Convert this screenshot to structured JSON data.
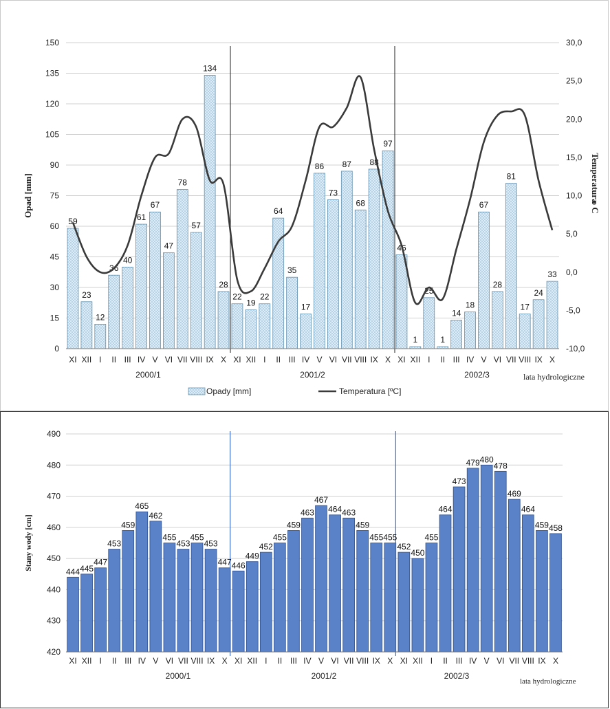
{
  "top_chart": {
    "ylabel_left": "Opad [mm]",
    "ylabel_right": "Temperatura",
    "ylabel_right_unit": "o C",
    "xaxis_caption": "lata hydrologiczne",
    "legend": {
      "bars": "Opady [mm]",
      "line": "Temperatura [ºC]"
    },
    "colors": {
      "bar_fill": "#a9cde4",
      "bar_stroke": "#5e8fb0",
      "line": "#3a3a3a",
      "grid": "#d0d0d0"
    }
  },
  "bottom_chart": {
    "ylabel": "Stany wody [cm]",
    "xaxis_caption": "lata hydrologiczne",
    "colors": {
      "bar_fill": "#5a82c8",
      "bar_stroke": "#2d4f8f",
      "divider": "#3f6fc0",
      "grid": "#d0d0d0"
    }
  },
  "chart_data": [
    {
      "type": "bar",
      "categories": [
        "XI",
        "XII",
        "I",
        "II",
        "III",
        "IV",
        "V",
        "VI",
        "VII",
        "VIII",
        "IX",
        "X",
        "XI",
        "XII",
        "I",
        "II",
        "III",
        "IV",
        "V",
        "VI",
        "VII",
        "VIII",
        "IX",
        "X",
        "XI",
        "XII",
        "I",
        "II",
        "III",
        "IV",
        "V",
        "VI",
        "VII",
        "VIII",
        "IX",
        "X"
      ],
      "year_groups": [
        "2000/1",
        "2001/2",
        "2002/3"
      ],
      "series": [
        {
          "name": "Opady [mm]",
          "type": "bar",
          "axis": "left",
          "values": [
            59,
            23,
            12,
            36,
            40,
            61,
            67,
            47,
            78,
            57,
            134,
            28,
            22,
            19,
            22,
            64,
            35,
            17,
            86,
            73,
            87,
            68,
            88,
            97,
            46,
            1,
            25,
            1,
            14,
            18,
            67,
            28,
            81,
            17,
            24,
            33
          ]
        },
        {
          "name": "Temperatura [ºC]",
          "type": "line",
          "axis": "right",
          "values": [
            6.5,
            2.0,
            0.0,
            0.5,
            3.5,
            10.0,
            15.0,
            15.5,
            20.0,
            19.0,
            12.0,
            11.5,
            -1.0,
            -2.5,
            0.5,
            4.0,
            6.0,
            12.0,
            19.0,
            19.0,
            21.5,
            25.5,
            16.0,
            8.0,
            3.5,
            -4.0,
            -2.0,
            -3.5,
            3.0,
            9.5,
            17.0,
            20.5,
            21.0,
            20.5,
            12.0,
            5.5
          ]
        }
      ],
      "ylim_left": [
        0,
        150
      ],
      "yticks_left": [
        "0",
        "15",
        "30",
        "45",
        "60",
        "75",
        "90",
        "105",
        "120",
        "135",
        "150"
      ],
      "ylim_right": [
        -10,
        30
      ],
      "yticks_right": [
        "-10,0",
        "-5,0",
        "0,0",
        "5,0",
        "10,0",
        "15,0",
        "20,0",
        "25,0",
        "30,0"
      ],
      "ylabel": "Opad [mm]",
      "y2label": "Temperatura o C",
      "grid": true,
      "legend": "bottom"
    },
    {
      "type": "bar",
      "categories": [
        "XI",
        "XII",
        "I",
        "II",
        "III",
        "IV",
        "V",
        "VI",
        "VII",
        "VIII",
        "IX",
        "X",
        "XI",
        "XII",
        "I",
        "II",
        "III",
        "IV",
        "V",
        "VI",
        "VII",
        "VIII",
        "IX",
        "X",
        "XI",
        "XII",
        "I",
        "II",
        "III",
        "IV",
        "V",
        "VI",
        "VII",
        "VIII",
        "IX",
        "X"
      ],
      "year_groups": [
        "2000/1",
        "2001/2",
        "2002/3"
      ],
      "values": [
        444,
        445,
        447,
        453,
        459,
        465,
        462,
        455,
        453,
        455,
        453,
        447,
        446,
        449,
        452,
        455,
        459,
        463,
        467,
        464,
        463,
        459,
        455,
        455,
        452,
        450,
        455,
        464,
        473,
        479,
        480,
        478,
        469,
        464,
        459,
        458
      ],
      "ylim": [
        420,
        490
      ],
      "yticks": [
        "420",
        "430",
        "440",
        "450",
        "460",
        "470",
        "480",
        "490"
      ],
      "ylabel": "Stany wody [cm]",
      "grid": true
    }
  ]
}
